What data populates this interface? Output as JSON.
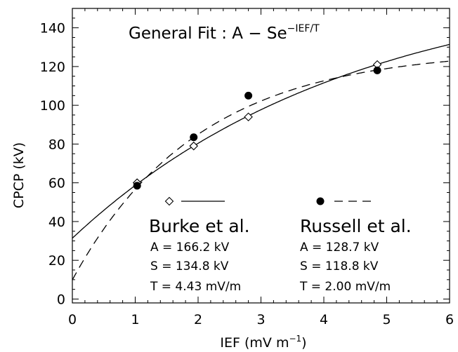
{
  "chart_data": {
    "type": "scatter",
    "title": {
      "prefix": "General Fit : A − Se",
      "superscript": "−IEF/T"
    },
    "xlabel": {
      "prefix": "IEF (mV m",
      "superscript": "−1",
      "suffix": ")"
    },
    "ylabel": "CPCP (kV)",
    "xlim": [
      0,
      6
    ],
    "ylim": [
      -2,
      150
    ],
    "x_ticks": [
      "0",
      "1",
      "2",
      "3",
      "4",
      "5",
      "6"
    ],
    "y_ticks": [
      "0",
      "20",
      "40",
      "60",
      "80",
      "100",
      "120",
      "140"
    ],
    "grid": false,
    "series": [
      {
        "name": "Burke et al.",
        "marker": "diamond",
        "line_style": "solid",
        "points": {
          "x": [
            1.03,
            1.93,
            2.8,
            4.85
          ],
          "y": [
            60,
            79,
            94,
            121
          ]
        },
        "fit": {
          "A": 166.2,
          "S": 134.8,
          "T": 4.43
        },
        "params_text": [
          "A = 166.2 kV",
          "S = 134.8 kV",
          "T = 4.43 mV/m"
        ]
      },
      {
        "name": "Russell et al.",
        "marker": "filled-circle",
        "line_style": "dashed",
        "points": {
          "x": [
            1.03,
            1.93,
            2.8,
            4.85
          ],
          "y": [
            58.5,
            83.5,
            105,
            118
          ]
        },
        "fit": {
          "A": 128.7,
          "S": 118.8,
          "T": 2.0
        },
        "params_text": [
          "A = 128.7 kV",
          "S = 118.8 kV",
          "T = 2.00 mV/m"
        ]
      }
    ]
  }
}
